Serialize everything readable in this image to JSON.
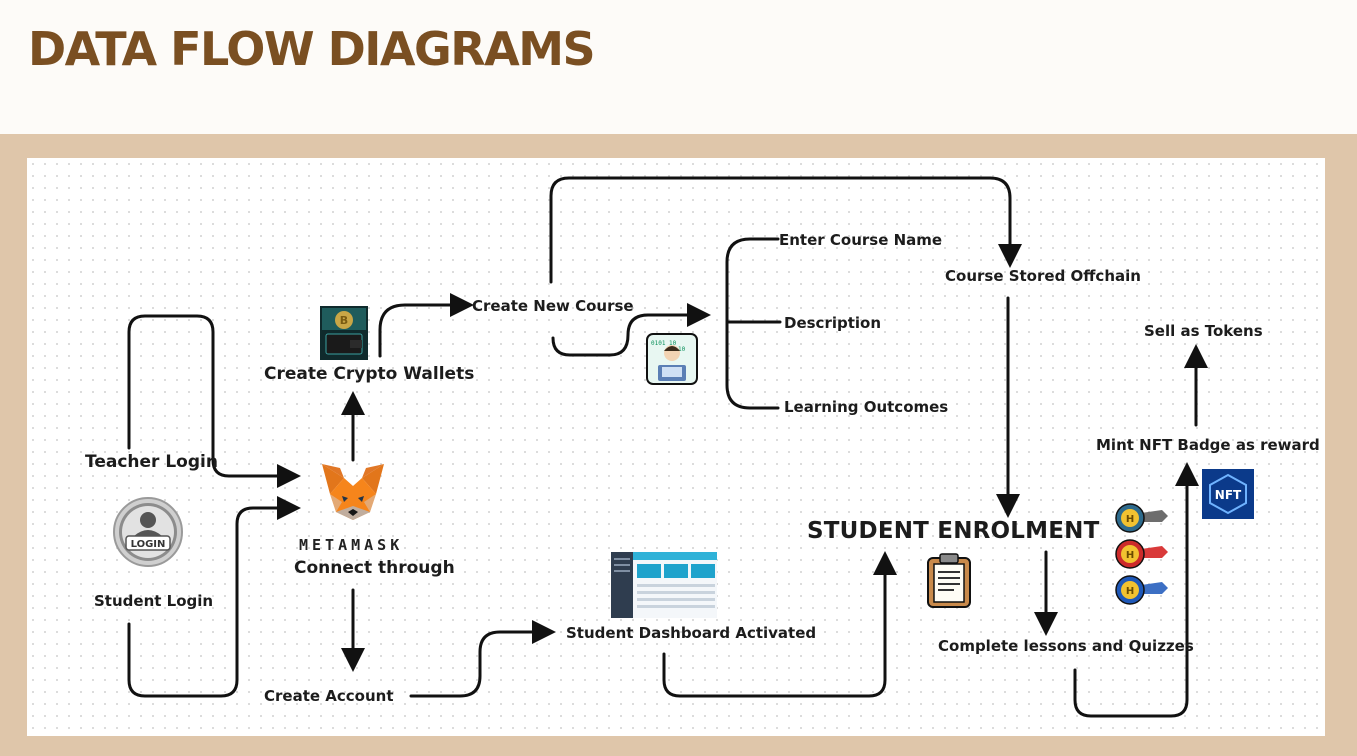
{
  "title": "DATA FLOW DIAGRAMS",
  "nodes": {
    "teacher_login": "Teacher Login",
    "login_badge": "LOGIN",
    "student_login": "Student Login",
    "metamask_wordmark": "METAMASK",
    "connect_through": "Connect through",
    "create_crypto_wallets": "Create Crypto Wallets",
    "create_account": "Create Account",
    "create_new_course": "Create New Course",
    "enter_course_name": "Enter Course Name",
    "description": "Description",
    "learning_outcomes": "Learning Outcomes",
    "course_stored_offchain": "Course Stored Offchain",
    "student_dashboard_activated": "Student Dashboard Activated",
    "student_enrolment": "STUDENT ENROLMENT",
    "complete_lessons_quizzes": "Complete lessons and Quizzes",
    "mint_nft_badge": "Mint NFT Badge as reward",
    "sell_as_tokens": "Sell as Tokens",
    "nft_badge_text": "NFT"
  },
  "colors": {
    "title": "#7a4f22",
    "frame": "#dfc6aa",
    "line": "#111111",
    "fox": "#e2761b",
    "nft_tile": "#0b3a8a"
  },
  "icons": [
    "login-icon",
    "metamask-fox-icon",
    "crypto-wallet-icon",
    "coder-icon",
    "dashboard-icon",
    "clipboard-icon",
    "medal-icon",
    "nft-icon"
  ]
}
